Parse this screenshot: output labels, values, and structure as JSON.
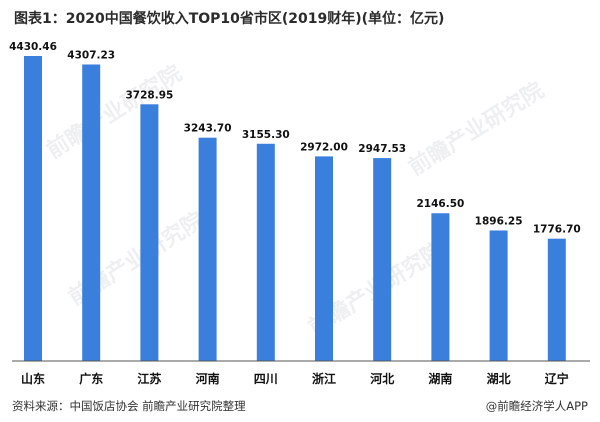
{
  "title": "图表1：2020中国餐饮收入TOP10省市区(2019财年)(单位：亿元)",
  "watermark": "前瞻产业研究院",
  "colors": {
    "bar": "#3a7fdb",
    "axis": "#555555",
    "background": "#ffffff"
  },
  "chart_data": {
    "type": "bar",
    "title": "图表1：2020中国餐饮收入TOP10省市区(2019财年)(单位：亿元)",
    "categories": [
      "山东",
      "广东",
      "江苏",
      "河南",
      "四川",
      "浙江",
      "河北",
      "湖南",
      "湖北",
      "辽宁"
    ],
    "values": [
      4430.46,
      4307.23,
      3728.95,
      3243.7,
      3155.3,
      2972.0,
      2947.53,
      2146.5,
      1896.25,
      1776.7
    ],
    "value_labels": [
      "4430.46",
      "4307.23",
      "3728.95",
      "3243.70",
      "3155.30",
      "2972.00",
      "2947.53",
      "2146.50",
      "1896.25",
      "1776.70"
    ],
    "xlabel": "",
    "ylabel": "",
    "ylim": [
      0,
      4430.46
    ],
    "grid": false,
    "legend": "none"
  },
  "footer": {
    "source": "资料来源：中国饭店协会  前瞻产业研究院整理",
    "credit": "@前瞻经济学人APP"
  }
}
